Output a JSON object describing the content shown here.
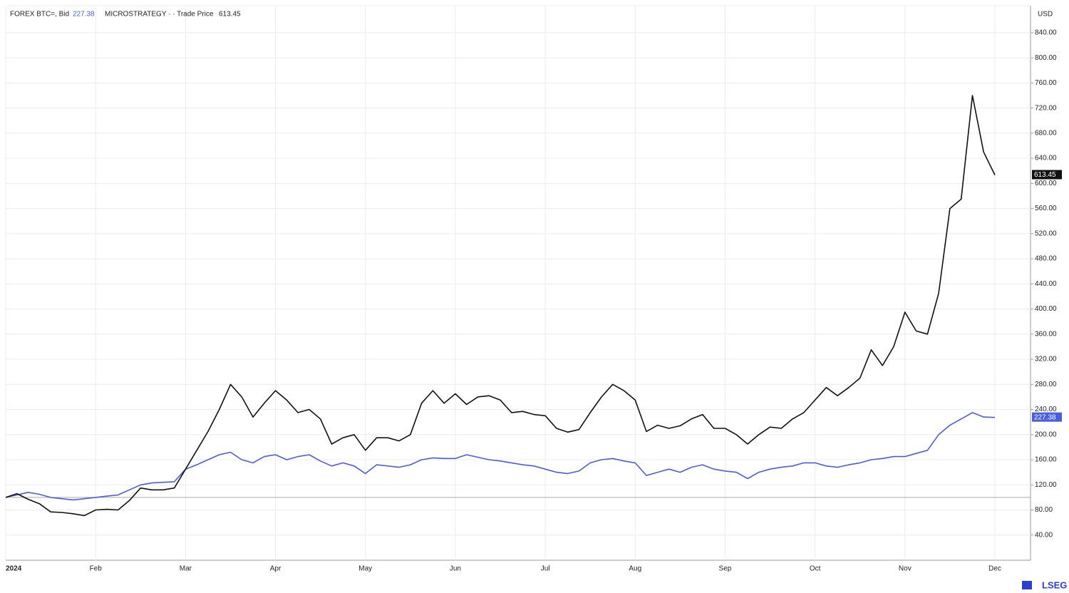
{
  "chart_data": {
    "type": "line",
    "currency": "USD",
    "logo": "LSEG",
    "categories": [
      "2024",
      null,
      null,
      null,
      null,
      null,
      null,
      null,
      "Feb",
      null,
      null,
      null,
      null,
      null,
      null,
      null,
      "Mar",
      null,
      null,
      null,
      null,
      null,
      null,
      null,
      "Apr",
      null,
      null,
      null,
      null,
      null,
      null,
      null,
      "May",
      null,
      null,
      null,
      null,
      null,
      null,
      null,
      "Jun",
      null,
      null,
      null,
      null,
      null,
      null,
      null,
      "Jul",
      null,
      null,
      null,
      null,
      null,
      null,
      null,
      "Aug",
      null,
      null,
      null,
      null,
      null,
      null,
      null,
      "Sep",
      null,
      null,
      null,
      null,
      null,
      null,
      null,
      "Oct",
      null,
      null,
      null,
      null,
      null,
      null,
      null,
      "Nov",
      null,
      null,
      null,
      null,
      null,
      null,
      null,
      "Dec"
    ],
    "series": [
      {
        "name": "MICROSTRATEGY · · Trade Price",
        "color": "#111111",
        "values": [
          100,
          106,
          97,
          90,
          77,
          76,
          74,
          71,
          80,
          81,
          80,
          95,
          115,
          112,
          112,
          115,
          145,
          175,
          205,
          240,
          280,
          260,
          228,
          250,
          270,
          255,
          235,
          240,
          225,
          185,
          195,
          200,
          175,
          195,
          195,
          190,
          200,
          250,
          270,
          250,
          265,
          248,
          260,
          262,
          255,
          235,
          237,
          232,
          230,
          210,
          204,
          208,
          235,
          260,
          280,
          270,
          255,
          205,
          215,
          210,
          214,
          225,
          232,
          210,
          210,
          200,
          185,
          200,
          212,
          210,
          225,
          235,
          255,
          275,
          262,
          275,
          290,
          335,
          310,
          340,
          395,
          365,
          360,
          425,
          560,
          575,
          740,
          650,
          613.45
        ]
      },
      {
        "name": "FOREX BTC=, Bid",
        "color": "#4a5de0",
        "values": [
          100,
          104,
          108,
          105,
          100,
          98,
          96,
          98,
          100,
          102,
          104,
          112,
          120,
          123,
          124,
          125,
          145,
          152,
          160,
          168,
          172,
          160,
          155,
          165,
          168,
          160,
          165,
          168,
          158,
          150,
          155,
          150,
          138,
          152,
          150,
          148,
          152,
          160,
          163,
          162,
          162,
          168,
          164,
          160,
          158,
          155,
          152,
          150,
          145,
          140,
          138,
          142,
          155,
          160,
          162,
          158,
          155,
          135,
          140,
          145,
          140,
          148,
          152,
          145,
          142,
          140,
          130,
          140,
          145,
          148,
          150,
          155,
          155,
          150,
          148,
          152,
          155,
          160,
          162,
          165,
          165,
          170,
          175,
          200,
          215,
          225,
          235,
          228,
          227.38
        ]
      }
    ],
    "reference_line": 100,
    "ylim": [
      0,
      883
    ],
    "yticks": [
      {
        "value": 40,
        "label": "40.00"
      },
      {
        "value": 80,
        "label": "80.00"
      },
      {
        "value": 120,
        "label": "120.00"
      },
      {
        "value": 160,
        "label": "160.00"
      },
      {
        "value": 200,
        "label": "200.00"
      },
      {
        "value": 240,
        "label": "240.00"
      },
      {
        "value": 280,
        "label": "280.00"
      },
      {
        "value": 320,
        "label": "320.00"
      },
      {
        "value": 360,
        "label": "360.00"
      },
      {
        "value": 400,
        "label": "400.00"
      },
      {
        "value": 440,
        "label": "440.00"
      },
      {
        "value": 480,
        "label": "480.00"
      },
      {
        "value": 520,
        "label": "520.00"
      },
      {
        "value": 560,
        "label": "560.00"
      },
      {
        "value": 600,
        "label": "600.00"
      },
      {
        "value": 640,
        "label": "640.00"
      },
      {
        "value": 680,
        "label": "680.00"
      },
      {
        "value": 720,
        "label": "720.00"
      },
      {
        "value": 760,
        "label": "760.00"
      },
      {
        "value": 800,
        "label": "800.00"
      },
      {
        "value": 840,
        "label": "840.00"
      }
    ],
    "grid": true
  }
}
